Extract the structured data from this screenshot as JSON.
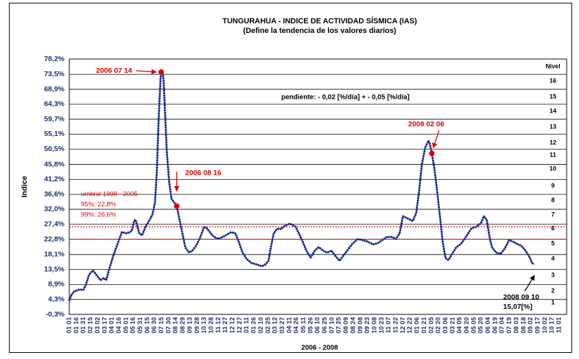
{
  "chart_data": {
    "type": "line",
    "title": "TUNGURAHUA - INDICE DE ACTIVIDAD SÍSMICA (IAS)",
    "subtitle": "(Define la tendencia de los valores diarios)",
    "y_label": "Indice",
    "x_label": "2006 - 2008",
    "color": "#1c2a8c",
    "xlim": [
      "2006 01 01",
      "2008 11 01"
    ],
    "categories": [
      "01 01",
      "01 16",
      "01 31",
      "02 15",
      "03 02",
      "03 17",
      "04 01",
      "04 16",
      "05 01",
      "05 16",
      "05 31",
      "06 15",
      "06 30",
      "07 15",
      "07 30",
      "08 14",
      "08 29",
      "09 13",
      "09 28",
      "10 13",
      "10 28",
      "11 12",
      "11 27",
      "12 12",
      "12 27",
      "01 11",
      "01 26",
      "02 10",
      "02 25",
      "03 12",
      "03 27",
      "04 11",
      "04 26",
      "05 11",
      "05 26",
      "06 10",
      "06 25",
      "07 10",
      "07 25",
      "08 09",
      "08 24",
      "09 08",
      "09 23",
      "10 08",
      "10 23",
      "11 07",
      "11 22",
      "12 07",
      "12 22",
      "01 06",
      "01 21",
      "02 05",
      "02 20",
      "03 06",
      "03 21",
      "04 05",
      "04 20",
      "05 05",
      "05 20",
      "06 04",
      "06 19",
      "07 04",
      "07 19",
      "08 03",
      "08 18",
      "09 02",
      "09 17",
      "10 02",
      "10 17",
      "11 01"
    ],
    "ylim": [
      -0.3,
      78.2
    ],
    "yticks": [
      {
        "value": -0.3,
        "label": "-0,3%"
      },
      {
        "value": 4.3,
        "label": "4,3%"
      },
      {
        "value": 8.9,
        "label": "8,9%"
      },
      {
        "value": 13.5,
        "label": "13,5%"
      },
      {
        "value": 18.1,
        "label": "18,1%"
      },
      {
        "value": 22.8,
        "label": "22,8%"
      },
      {
        "value": 27.4,
        "label": "27,4%"
      },
      {
        "value": 32.0,
        "label": "32,0%"
      },
      {
        "value": 36.6,
        "label": "36,6%"
      },
      {
        "value": 41.2,
        "label": "41,2%"
      },
      {
        "value": 45.8,
        "label": "45,8%"
      },
      {
        "value": 50.5,
        "label": "50,5%"
      },
      {
        "value": 55.1,
        "label": "55,1%"
      },
      {
        "value": 59.7,
        "label": "59,7%"
      },
      {
        "value": 64.3,
        "label": "64,3%"
      },
      {
        "value": 68.9,
        "label": "68,9%"
      },
      {
        "value": 73.5,
        "label": "73,5%"
      },
      {
        "value": 78.2,
        "label": "78,2%"
      }
    ],
    "grid": true,
    "x": [
      "2006 01 01",
      "2006 01 06",
      "2006 01 11",
      "2006 01 21",
      "2006 01 31",
      "2006 02 05",
      "2006 02 12",
      "2006 02 20",
      "2006 03 01",
      "2006 03 08",
      "2006 03 15",
      "2006 03 20",
      "2006 03 25",
      "2006 04 03",
      "2006 04 13",
      "2006 04 22",
      "2006 05 02",
      "2006 05 09",
      "2006 05 13",
      "2006 05 18",
      "2006 05 21",
      "2006 05 29",
      "2006 06 04",
      "2006 06 11",
      "2006 06 20",
      "2006 06 26",
      "2006 07 01",
      "2006 07 05",
      "2006 07 09",
      "2006 07 13",
      "2006 07 14",
      "2006 07 16",
      "2006 07 19",
      "2006 07 22",
      "2006 07 26",
      "2006 07 31",
      "2006 08 05",
      "2006 08 11",
      "2006 08 16",
      "2006 08 22",
      "2006 08 28",
      "2006 09 03",
      "2006 09 11",
      "2006 09 18",
      "2006 09 26",
      "2006 10 05",
      "2006 10 13",
      "2006 10 20",
      "2006 10 27",
      "2006 11 03",
      "2006 11 12",
      "2006 11 21",
      "2006 11 30",
      "2006 12 09",
      "2006 12 18",
      "2006 12 24",
      "2007 01 02",
      "2007 01 11",
      "2007 01 21",
      "2007 01 31",
      "2007 02 12",
      "2007 02 20",
      "2007 02 26",
      "2007 03 03",
      "2007 03 09",
      "2007 03 16",
      "2007 03 25",
      "2007 04 03",
      "2007 04 12",
      "2007 04 24",
      "2007 05 01",
      "2007 05 08",
      "2007 05 17",
      "2007 05 26",
      "2007 06 04",
      "2007 06 12",
      "2007 06 21",
      "2007 06 30",
      "2007 07 09",
      "2007 07 17",
      "2007 07 26",
      "2007 08 03",
      "2007 08 12",
      "2007 08 22",
      "2007 09 03",
      "2007 09 13",
      "2007 09 23",
      "2007 10 05",
      "2007 10 15",
      "2007 10 24",
      "2007 11 03",
      "2007 11 14",
      "2007 11 22",
      "2007 11 30",
      "2007 12 07",
      "2007 12 17",
      "2007 12 28",
      "2008 01 04",
      "2008 01 10",
      "2008 01 16",
      "2008 01 23",
      "2008 01 30",
      "2008 02 02",
      "2008 02 06",
      "2008 02 11",
      "2008 02 17",
      "2008 02 23",
      "2008 02 29",
      "2008 03 06",
      "2008 03 12",
      "2008 03 20",
      "2008 03 29",
      "2008 04 08",
      "2008 04 18",
      "2008 04 30",
      "2008 05 11",
      "2008 05 20",
      "2008 05 26",
      "2008 06 01",
      "2008 06 07",
      "2008 06 12",
      "2008 06 21",
      "2008 06 30",
      "2008 07 09",
      "2008 07 18",
      "2008 07 26",
      "2008 08 04",
      "2008 08 13",
      "2008 08 22",
      "2008 08 31",
      "2008 09 05",
      "2008 09 10"
    ],
    "values": [
      4.1,
      5.8,
      6.7,
      7.3,
      7.3,
      8.8,
      12.0,
      13.2,
      11.5,
      10.2,
      10.9,
      10.2,
      13.0,
      17.3,
      21.4,
      25.0,
      24.6,
      25.0,
      25.4,
      28.4,
      28.8,
      24.6,
      24.0,
      26.7,
      28.8,
      30.5,
      34.1,
      43.6,
      60.5,
      72.5,
      74.2,
      74.8,
      72.1,
      62.6,
      49.9,
      40.4,
      35.2,
      34.1,
      33.0,
      28.8,
      24.6,
      20.4,
      18.7,
      19.3,
      20.8,
      23.5,
      26.7,
      26.0,
      24.6,
      23.5,
      22.9,
      23.5,
      24.2,
      25.0,
      24.6,
      22.5,
      18.7,
      16.7,
      15.5,
      15.1,
      14.5,
      15.1,
      16.2,
      20.4,
      24.6,
      26.0,
      26.0,
      27.1,
      27.6,
      26.7,
      24.6,
      22.5,
      19.3,
      17.2,
      19.3,
      20.4,
      19.3,
      18.7,
      19.3,
      17.7,
      16.2,
      17.7,
      19.4,
      21.4,
      22.9,
      22.5,
      22.1,
      21.2,
      21.6,
      22.5,
      23.5,
      23.5,
      22.9,
      24.6,
      29.9,
      29.2,
      28.4,
      30.9,
      37.3,
      45.7,
      51.0,
      53.1,
      52.0,
      49.2,
      45.0,
      38.0,
      30.0,
      22.0,
      17.0,
      16.4,
      18.3,
      20.4,
      21.4,
      23.5,
      26.2,
      26.7,
      27.8,
      29.9,
      28.8,
      23.5,
      20.4,
      18.7,
      18.3,
      19.9,
      22.5,
      22.1,
      21.4,
      20.8,
      19.3,
      17.2,
      15.5,
      15.07
    ],
    "threshold_title": "umbral 1999 - 2005",
    "threshold_color": "#e00000",
    "thresholds": [
      {
        "label": "95%:   22,8%",
        "value": 22.8
      },
      {
        "label": "99%:   26,6%",
        "value": 26.6
      }
    ],
    "slope_note": "pendiente:    - 0,02 [%/día]   + - 0,05 [%/día]",
    "level_title": "Nivel",
    "levels": [
      1,
      2,
      3,
      4,
      5,
      6,
      7,
      8,
      9,
      10,
      11,
      12,
      13,
      14,
      15,
      16
    ],
    "annotations": [
      {
        "date": "2006 07 14",
        "value": 74.2,
        "color": "#e00000",
        "dot": true
      },
      {
        "date": "2006 08 16",
        "value": 33.0,
        "color": "#e00000",
        "dot": true
      },
      {
        "date": "2008 02 06",
        "value": 49.2,
        "color": "#e00000",
        "dot": true
      },
      {
        "date": "2008 09 10",
        "value": 15.07,
        "value_label": "15,07[%]",
        "color": "#000000",
        "dot": false
      }
    ]
  }
}
